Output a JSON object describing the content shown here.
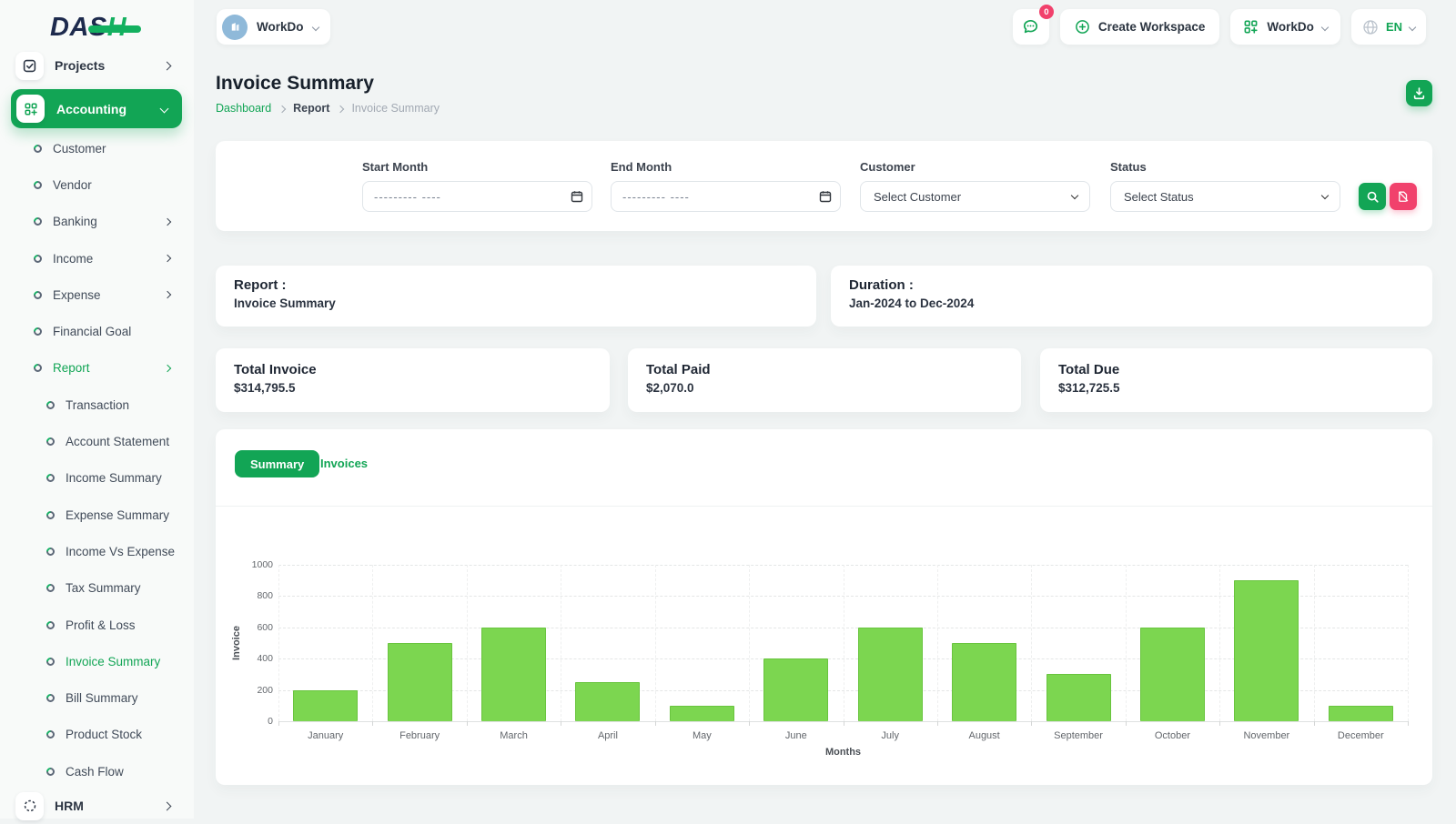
{
  "app": {
    "logo_dark": "DAS",
    "logo_green": "H"
  },
  "topbar": {
    "workspace_name": "WorkDo",
    "chat_badge": "0",
    "create_workspace_label": "Create Workspace",
    "app_menu_label": "WorkDo",
    "language": "EN"
  },
  "sidebar": {
    "projects_label": "Projects",
    "accounting_label": "Accounting",
    "hrm_label": "HRM",
    "items": [
      {
        "label": "Customer",
        "level": 1
      },
      {
        "label": "Vendor",
        "level": 1
      },
      {
        "label": "Banking",
        "level": 1,
        "chevron": true
      },
      {
        "label": "Income",
        "level": 1,
        "chevron": true
      },
      {
        "label": "Expense",
        "level": 1,
        "chevron": true
      },
      {
        "label": "Financial Goal",
        "level": 1
      },
      {
        "label": "Report",
        "level": 1,
        "chevron": true,
        "active": true
      },
      {
        "label": "Transaction",
        "level": 2
      },
      {
        "label": "Account Statement",
        "level": 2
      },
      {
        "label": "Income Summary",
        "level": 2
      },
      {
        "label": "Expense Summary",
        "level": 2
      },
      {
        "label": "Income Vs Expense",
        "level": 2
      },
      {
        "label": "Tax Summary",
        "level": 2
      },
      {
        "label": "Profit & Loss",
        "level": 2
      },
      {
        "label": "Invoice Summary",
        "level": 2,
        "active": true
      },
      {
        "label": "Bill Summary",
        "level": 2
      },
      {
        "label": "Product Stock",
        "level": 2
      },
      {
        "label": "Cash Flow",
        "level": 2
      }
    ]
  },
  "header": {
    "title": "Invoice Summary",
    "breadcrumb": [
      "Dashboard",
      "Report",
      "Invoice Summary"
    ]
  },
  "filters": {
    "start_month_label": "Start Month",
    "end_month_label": "End Month",
    "month_placeholder": "--------- ----",
    "customer_label": "Customer",
    "customer_value": "Select Customer",
    "status_label": "Status",
    "status_value": "Select Status"
  },
  "info": {
    "report_label": "Report :",
    "report_value": "Invoice Summary",
    "duration_label": "Duration :",
    "duration_value": "Jan-2024 to Dec-2024"
  },
  "totals": [
    {
      "label": "Total Invoice",
      "value": "$314,795.5"
    },
    {
      "label": "Total Paid",
      "value": "$2,070.0"
    },
    {
      "label": "Total Due",
      "value": "$312,725.5"
    }
  ],
  "tabs": {
    "summary": "Summary",
    "invoices": "Invoices"
  },
  "chart_data": {
    "type": "bar",
    "categories": [
      "January",
      "February",
      "March",
      "April",
      "May",
      "June",
      "July",
      "August",
      "September",
      "October",
      "November",
      "December"
    ],
    "values": [
      200,
      500,
      600,
      250,
      100,
      400,
      600,
      500,
      300,
      600,
      900,
      100
    ],
    "title": "",
    "xlabel": "Months",
    "ylabel": "Invoice",
    "ylim": [
      0,
      1000
    ],
    "yticks": [
      0,
      200,
      400,
      600,
      800,
      1000
    ],
    "grid": true,
    "legend": false,
    "bar_color": "#7cd650"
  },
  "colors": {
    "accent": "#12a555",
    "danger": "#f1416c",
    "bar": "#7cd650",
    "navy": "#1d2a4d"
  }
}
